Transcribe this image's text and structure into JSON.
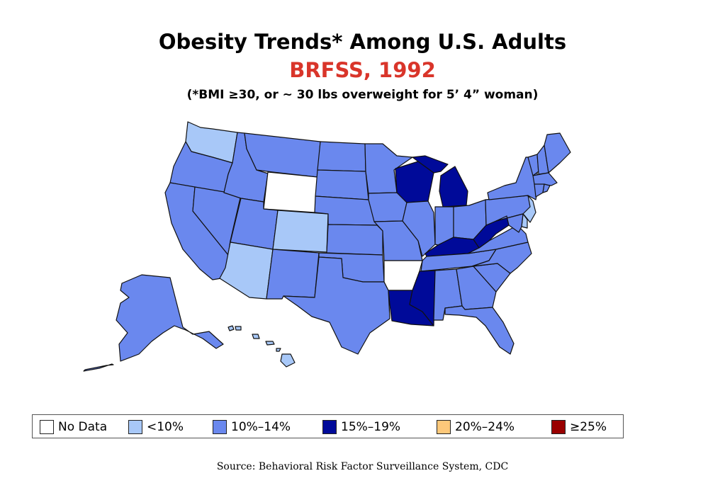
{
  "title": "Obesity Trends* Among U.S. Adults",
  "subtitle": "BRFSS, 1992",
  "note": "(*BMI ≥30, or ~ 30 lbs overweight for 5’ 4” woman)",
  "source": "Source: Behavioral Risk Factor Surveillance System, CDC",
  "colors": {
    "title": "#000000",
    "subtitle": "#d9352a",
    "no_data": "#ffffff",
    "lt10": "#a8c8f8",
    "c10_14": "#6a88ee",
    "c15_19": "#000a99",
    "c20_24": "#fdc87a",
    "ge25": "#990000",
    "border": "#111111"
  },
  "legend": [
    {
      "key": "no_data",
      "label": "No Data",
      "color": "#ffffff"
    },
    {
      "key": "lt10",
      "label": "<10%",
      "color": "#a8c8f8"
    },
    {
      "key": "c10_14",
      "label": "10%–14%",
      "color": "#6a88ee"
    },
    {
      "key": "c15_19",
      "label": "15%–19%",
      "color": "#000a99"
    },
    {
      "key": "c20_24",
      "label": "20%–24%",
      "color": "#fdc87a"
    },
    {
      "key": "ge25",
      "label": "≥25%",
      "color": "#990000"
    }
  ],
  "states": {
    "WA": "lt10",
    "OR": "c10_14",
    "CA": "c10_14",
    "NV": "c10_14",
    "ID": "c10_14",
    "MT": "c10_14",
    "WY": "no_data",
    "UT": "c10_14",
    "AZ": "lt10",
    "CO": "lt10",
    "NM": "c10_14",
    "ND": "c10_14",
    "SD": "c10_14",
    "NE": "c10_14",
    "KS": "c10_14",
    "OK": "c10_14",
    "TX": "c10_14",
    "MN": "c10_14",
    "IA": "c10_14",
    "MO": "c10_14",
    "AR": "no_data",
    "LA": "c15_19",
    "WI": "c15_19",
    "IL": "c10_14",
    "MS": "c15_19",
    "MI": "c15_19",
    "IN": "c10_14",
    "KY": "c15_19",
    "TN": "c10_14",
    "AL": "c10_14",
    "OH": "c10_14",
    "WV": "c15_19",
    "GA": "c10_14",
    "FL": "c10_14",
    "SC": "c10_14",
    "NC": "c10_14",
    "VA": "c10_14",
    "PA": "c10_14",
    "NY": "c10_14",
    "VT": "c10_14",
    "NH": "c10_14",
    "ME": "c10_14",
    "MA": "c10_14",
    "CT": "c10_14",
    "RI": "c10_14",
    "NJ": "lt10",
    "DE": "lt10",
    "MD": "c10_14",
    "AK": "c10_14",
    "HI": "lt10"
  }
}
